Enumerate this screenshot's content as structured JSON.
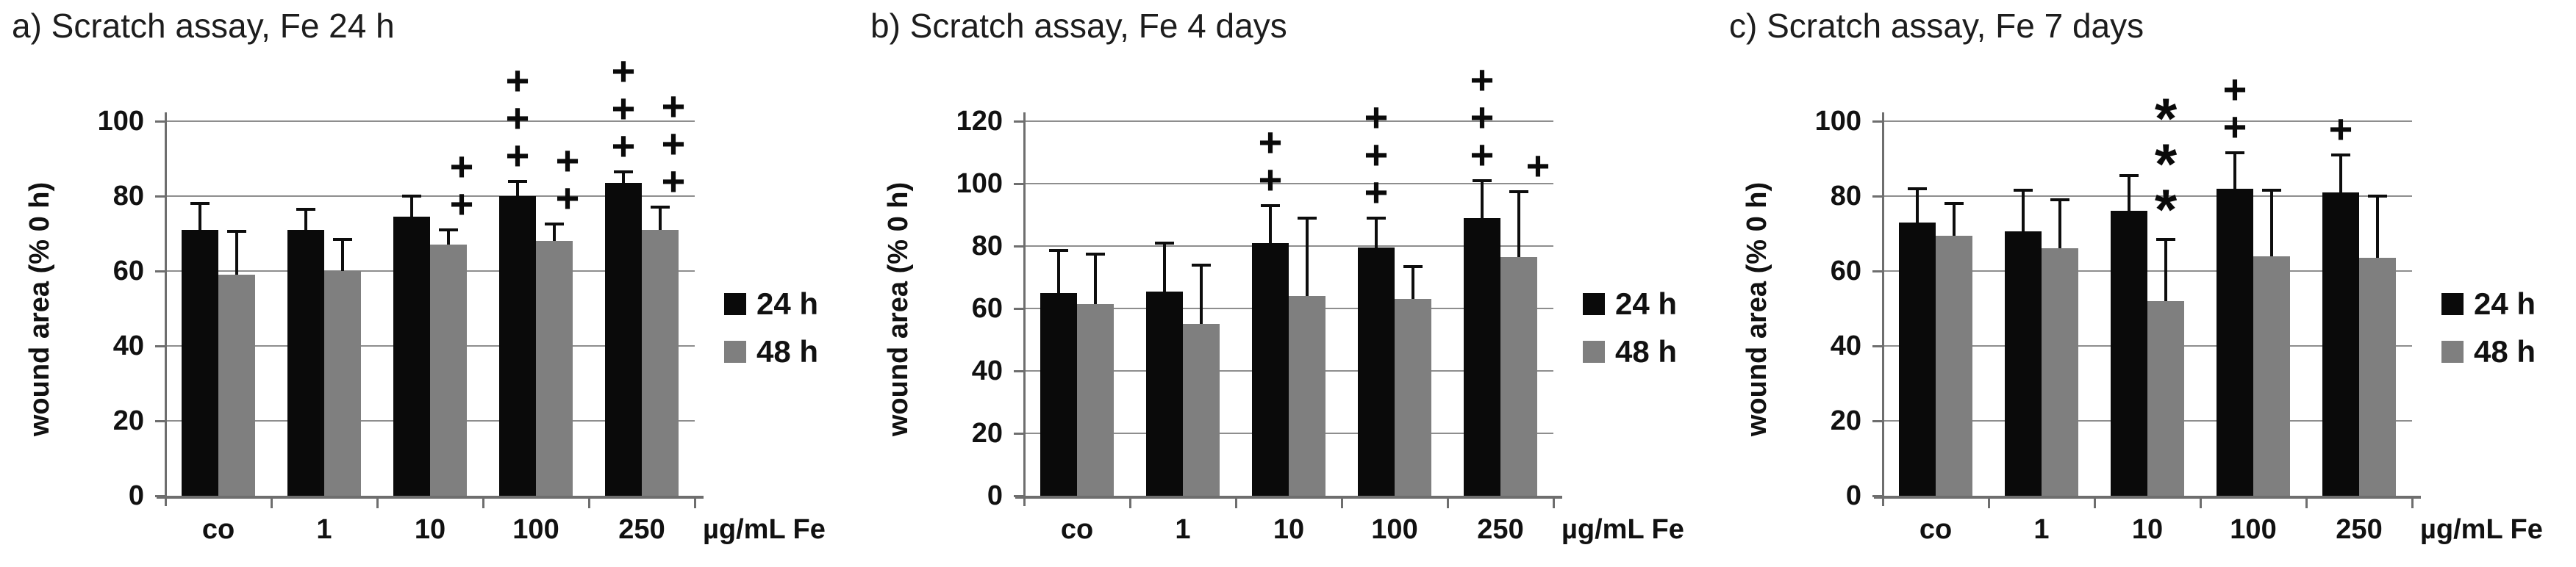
{
  "figure": {
    "background": "#ffffff",
    "gridline_color": "#8e8e8e",
    "axis_color": "#6e6e6e",
    "legend": [
      {
        "label": "24 h",
        "color": "#0a0a0a"
      },
      {
        "label": "48 h",
        "color": "#7f7f7f"
      }
    ]
  },
  "chart_data": [
    {
      "type": "bar",
      "title": "a) Scratch assay, Fe 24 h",
      "ylabel": "wound area (% 0 h)",
      "xlabel": "µg/mL Fe",
      "ylim": [
        0,
        100
      ],
      "ytick_step": 20,
      "grid": true,
      "legend_position": "right",
      "categories": [
        "co",
        "1",
        "10",
        "100",
        "250"
      ],
      "series": [
        {
          "name": "24 h",
          "color": "#0a0a0a",
          "ann_dx": 0,
          "values": [
            71,
            71,
            74.5,
            80,
            83.5
          ],
          "err_top": [
            78,
            76.5,
            80,
            84,
            86.5
          ],
          "annotations": [
            "",
            "",
            "",
            "+++",
            "+++"
          ]
        },
        {
          "name": "48 h",
          "color": "#7f7f7f",
          "ann_dx": 18,
          "values": [
            59,
            60,
            67,
            68,
            71
          ],
          "err_top": [
            70.5,
            68.5,
            71,
            72.5,
            77
          ],
          "annotations": [
            "",
            "",
            "++",
            "++",
            "+++"
          ]
        }
      ]
    },
    {
      "type": "bar",
      "title": "b) Scratch assay, Fe 4 days",
      "ylabel": "wound area (% 0 h)",
      "xlabel": "µg/mL Fe",
      "ylim": [
        0,
        120
      ],
      "ytick_step": 20,
      "grid": true,
      "legend_position": "right",
      "categories": [
        "co",
        "1",
        "10",
        "100",
        "250"
      ],
      "series": [
        {
          "name": "24 h",
          "color": "#0a0a0a",
          "ann_dx": 0,
          "values": [
            65,
            65.5,
            81,
            79.5,
            89
          ],
          "err_top": [
            78.5,
            81,
            93,
            89,
            101
          ],
          "annotations": [
            "",
            "",
            "++",
            "+++",
            "+++"
          ]
        },
        {
          "name": "48 h",
          "color": "#7f7f7f",
          "ann_dx": 26,
          "values": [
            61.5,
            55,
            64,
            63,
            76.5
          ],
          "err_top": [
            77.5,
            74,
            89,
            73.5,
            97.5
          ],
          "annotations": [
            "",
            "",
            "",
            "",
            "+"
          ]
        }
      ]
    },
    {
      "type": "bar",
      "title": "c) Scratch assay, Fe 7 days",
      "ylabel": "wound area (% 0 h)",
      "xlabel": "µg/mL Fe",
      "ylim": [
        0,
        100
      ],
      "ytick_step": 20,
      "grid": true,
      "legend_position": "right",
      "categories": [
        "co",
        "1",
        "10",
        "100",
        "250"
      ],
      "series": [
        {
          "name": "24 h",
          "color": "#0a0a0a",
          "ann_dx": 0,
          "values": [
            73,
            70.5,
            76,
            82,
            81
          ],
          "err_top": [
            82,
            81.5,
            85.5,
            91.5,
            91
          ],
          "annotations": [
            "",
            "",
            "",
            "++",
            "+"
          ]
        },
        {
          "name": "48 h",
          "color": "#7f7f7f",
          "ann_dx": 0,
          "values": [
            69.5,
            66,
            52,
            64,
            63.5
          ],
          "err_top": [
            78,
            79,
            68.5,
            81.5,
            80
          ],
          "annotations": [
            "",
            "",
            "***",
            "",
            ""
          ]
        }
      ]
    }
  ]
}
